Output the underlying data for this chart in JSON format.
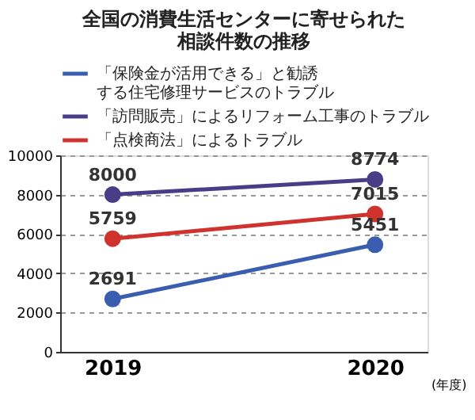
{
  "chart_data": {
    "type": "line",
    "title": "全国の消費生活センターに寄せられた相談件数の推移",
    "xlabel": "(年度)",
    "categories": [
      "2019",
      "2020"
    ],
    "series": [
      {
        "name": "「保険金が活用できる」と勧誘する住宅修理サービスのトラブル",
        "color": "#3a5db0",
        "values": [
          2691,
          5451
        ]
      },
      {
        "name": "「訪問販売」によるリフォーム工事のトラブル",
        "color": "#4a3d88",
        "values": [
          8000,
          8774
        ]
      },
      {
        "name": "「点検商法」によるトラブル",
        "color": "#d0322e",
        "values": [
          5759,
          7015
        ]
      }
    ],
    "ylim": [
      0,
      10000
    ],
    "yticks": [
      0,
      2000,
      4000,
      6000,
      8000,
      10000
    ],
    "grid": "y",
    "legend": "top",
    "marker": "circle",
    "line_style": "solid",
    "data_labels": true
  }
}
